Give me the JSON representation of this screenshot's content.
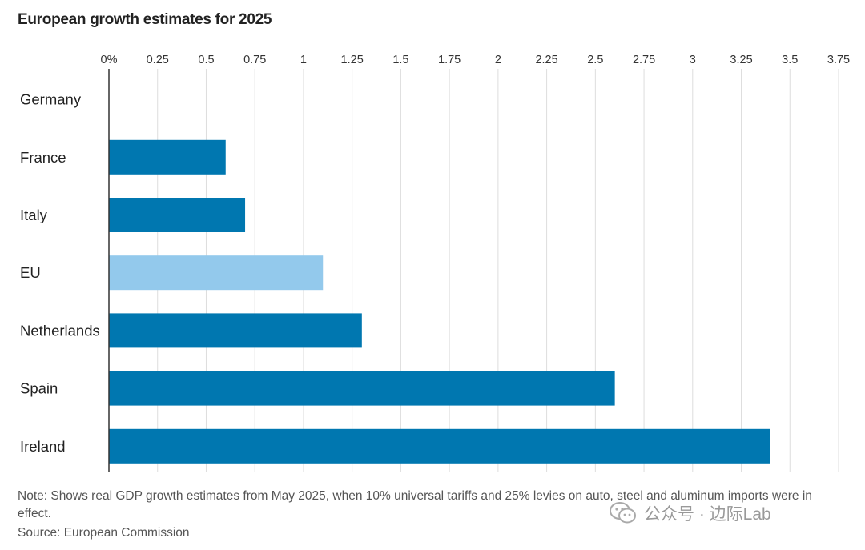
{
  "title": "European growth estimates for 2025",
  "note": "Note: Shows real GDP growth estimates from May 2025, when 10% universal tariffs and 25% levies on auto, steel and aluminum imports were in effect.",
  "source": "Source: European Commission",
  "watermark": "公众号 · 边际Lab",
  "colors": {
    "bar": "#0077b0",
    "highlight": "#93c9ec",
    "grid": "#dddddd",
    "axis": "#333333"
  },
  "chart_data": {
    "type": "bar",
    "orientation": "horizontal",
    "title": "European growth estimates for 2025",
    "categories": [
      "Germany",
      "France",
      "Italy",
      "EU",
      "Netherlands",
      "Spain",
      "Ireland"
    ],
    "values": [
      0,
      0.6,
      0.7,
      1.1,
      1.3,
      2.6,
      3.4
    ],
    "highlight": [
      "EU"
    ],
    "xlim": [
      0,
      3.75
    ],
    "x_ticks": [
      "0%",
      "0.25",
      "0.5",
      "0.75",
      "1",
      "1.25",
      "1.5",
      "1.75",
      "2",
      "2.25",
      "2.5",
      "2.75",
      "3",
      "3.25",
      "3.5",
      "3.75"
    ],
    "grid": true,
    "tick_position": "top"
  }
}
